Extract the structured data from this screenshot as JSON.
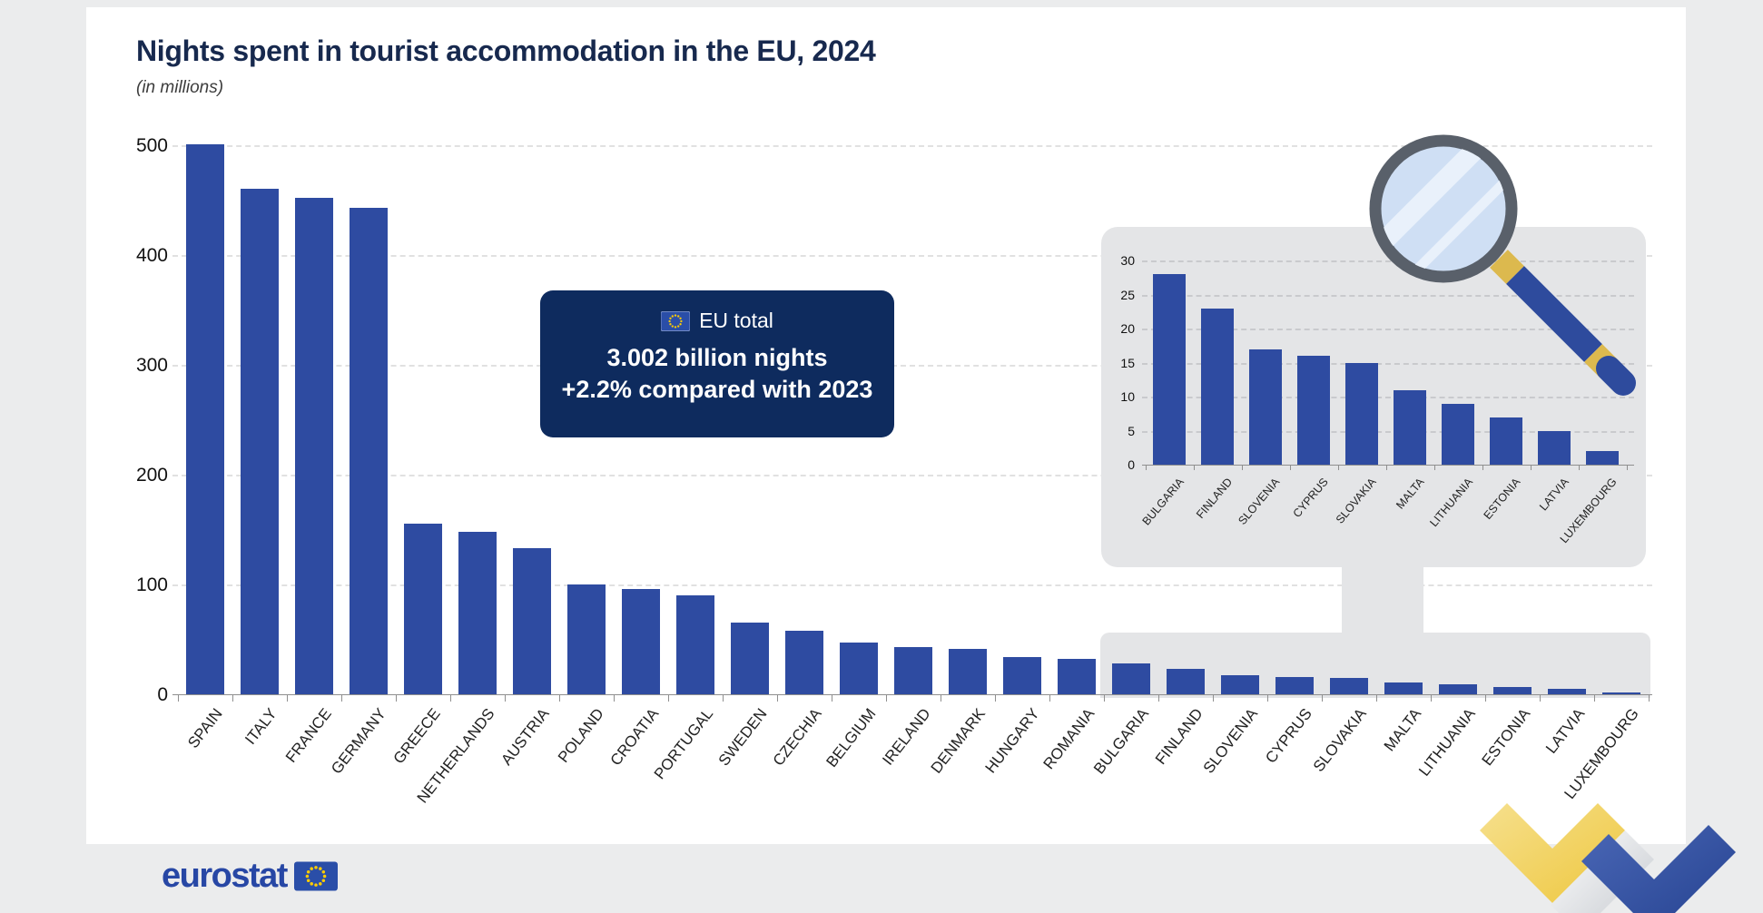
{
  "title": "Nights spent in tourist accommodation in the EU, 2024",
  "subtitle": "(in millions)",
  "callout": {
    "flag_icon": "eu-flag-icon",
    "label": "EU total",
    "total": "3.002 billion nights",
    "change": "+2.2% compared with 2023"
  },
  "logo": {
    "text": "eurostat",
    "flag_icon": "eu-flag-icon"
  },
  "icons": {
    "magnifier": "magnifying-glass-icon",
    "ribbon": "eurostat-ribbon-decoration"
  },
  "colors": {
    "bar": "#2e4ba1",
    "callout_bg": "#0e2b5e",
    "title_text": "#17294e",
    "page_bg": "#ebeced",
    "panel_bg": "#ffffff",
    "inset_bg": "#e4e5e7",
    "logo_blue": "#2747a5",
    "flag_blue": "#2a4ea8",
    "star_yellow": "#ffcc00"
  },
  "chart_data": [
    {
      "type": "bar",
      "title": "Nights spent in tourist accommodation in the EU, 2024",
      "ylabel": "in millions",
      "ylim": [
        0,
        500
      ],
      "yticks": [
        0,
        100,
        200,
        300,
        400,
        500
      ],
      "grid": "horizontal-dashed",
      "legend": "none",
      "categories": [
        "SPAIN",
        "ITALY",
        "FRANCE",
        "GERMANY",
        "GREECE",
        "NETHERLANDS",
        "AUSTRIA",
        "POLAND",
        "CROATIA",
        "PORTUGAL",
        "SWEDEN",
        "CZECHIA",
        "BELGIUM",
        "IRELAND",
        "DENMARK",
        "HUNGARY",
        "ROMANIA",
        "BULGARIA",
        "FINLAND",
        "SLOVENIA",
        "CYPRUS",
        "SLOVAKIA",
        "MALTA",
        "LITHUANIA",
        "ESTONIA",
        "LATVIA",
        "LUXEMBOURG"
      ],
      "values": [
        501,
        460,
        452,
        443,
        155,
        148,
        133,
        100,
        96,
        90,
        65,
        58,
        47,
        43,
        41,
        34,
        32,
        28,
        23,
        17,
        16,
        15,
        11,
        9,
        7,
        5,
        2
      ]
    },
    {
      "type": "bar",
      "role": "inset-zoom-of-ten-smallest-countries",
      "ylim": [
        0,
        30
      ],
      "yticks": [
        0,
        5,
        10,
        15,
        20,
        25,
        30
      ],
      "grid": "horizontal-dashed",
      "legend": "none",
      "categories": [
        "BULGARIA",
        "FINLAND",
        "SLOVENIA",
        "CYPRUS",
        "SLOVAKIA",
        "MALTA",
        "LITHUANIA",
        "ESTONIA",
        "LATVIA",
        "LUXEMBOURG"
      ],
      "values": [
        28,
        23,
        17,
        16,
        15,
        11,
        9,
        7,
        5,
        2
      ]
    }
  ]
}
